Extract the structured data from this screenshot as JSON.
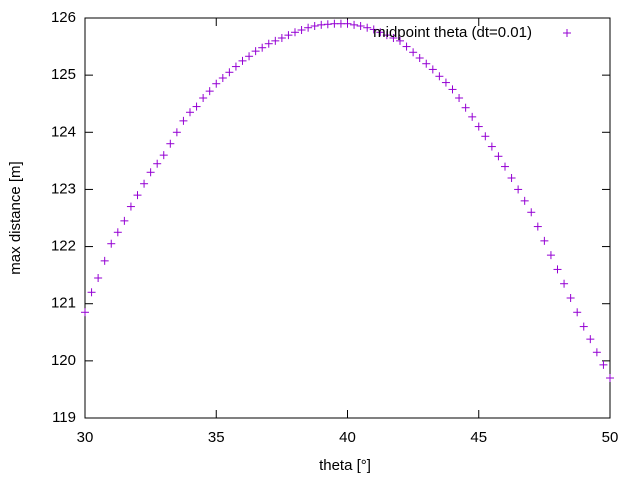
{
  "chart_data": {
    "type": "scatter",
    "xlabel": "theta [°]",
    "ylabel": "max distance [m]",
    "xlim": [
      30,
      50
    ],
    "xticks": [
      30,
      35,
      40,
      45,
      50
    ],
    "ylim": [
      119,
      126
    ],
    "yticks": [
      119,
      120,
      121,
      122,
      123,
      124,
      125,
      126
    ],
    "legend": "top-right",
    "grid": false,
    "series": [
      {
        "name": "midpoint theta (dt=0.01)",
        "color": "#9400d3",
        "x": [
          30,
          30.25,
          30.5,
          30.75,
          31,
          31.25,
          31.5,
          31.75,
          32,
          32.25,
          32.5,
          32.75,
          33,
          33.25,
          33.5,
          33.75,
          34,
          34.25,
          34.5,
          34.75,
          35,
          35.25,
          35.5,
          35.75,
          36,
          36.25,
          36.5,
          36.75,
          37,
          37.25,
          37.5,
          37.75,
          38,
          38.25,
          38.5,
          38.75,
          39,
          39.25,
          39.5,
          39.75,
          40,
          40.25,
          40.5,
          40.75,
          41,
          41.25,
          41.5,
          41.75,
          42,
          42.25,
          42.5,
          42.75,
          43,
          43.25,
          43.5,
          43.75,
          44,
          44.25,
          44.5,
          44.75,
          45,
          45.25,
          45.5,
          45.75,
          46,
          46.25,
          46.5,
          46.75,
          47,
          47.25,
          47.5,
          47.75,
          48,
          48.25,
          48.5,
          48.75,
          49,
          49.25,
          49.5,
          49.75,
          50
        ],
        "values": [
          120.85,
          121.2,
          121.45,
          121.75,
          122.05,
          122.25,
          122.45,
          122.7,
          122.9,
          123.1,
          123.3,
          123.45,
          123.6,
          123.8,
          124.0,
          124.2,
          124.35,
          124.45,
          124.6,
          124.72,
          124.85,
          124.95,
          125.05,
          125.15,
          125.25,
          125.33,
          125.42,
          125.48,
          125.55,
          125.6,
          125.65,
          125.7,
          125.75,
          125.79,
          125.83,
          125.86,
          125.88,
          125.89,
          125.9,
          125.9,
          125.9,
          125.88,
          125.86,
          125.83,
          125.8,
          125.75,
          125.7,
          125.65,
          125.6,
          125.5,
          125.4,
          125.3,
          125.2,
          125.1,
          124.98,
          124.87,
          124.75,
          124.6,
          124.43,
          124.27,
          124.1,
          123.93,
          123.75,
          123.58,
          123.4,
          123.2,
          123.0,
          122.8,
          122.6,
          122.35,
          122.1,
          121.85,
          121.6,
          121.35,
          121.1,
          120.85,
          120.6,
          120.38,
          120.15,
          119.93,
          119.7
        ]
      }
    ]
  }
}
